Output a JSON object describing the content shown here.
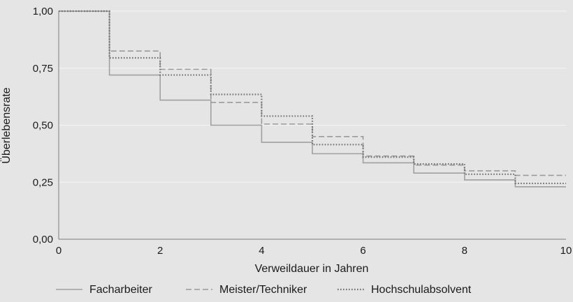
{
  "chart_data": {
    "type": "line",
    "step": true,
    "title": "",
    "xlabel": "Verweildauer in Jahren",
    "ylabel": "Überlebensrate",
    "xlim": [
      0,
      10
    ],
    "ylim": [
      0,
      1
    ],
    "xticks": [
      0,
      2,
      4,
      6,
      8,
      10
    ],
    "xtick_labels": [
      "0",
      "2",
      "4",
      "6",
      "8",
      "10"
    ],
    "yticks": [
      0,
      0.25,
      0.5,
      0.75,
      1.0
    ],
    "ytick_labels": [
      "0,00",
      "0,25",
      "0,50",
      "0,75",
      "1,00"
    ],
    "grid": "horizontal",
    "legend_position": "bottom",
    "x": [
      0,
      1,
      2,
      3,
      4,
      5,
      6,
      7,
      8,
      9,
      10
    ],
    "series": [
      {
        "name": "Facharbeiter",
        "style": "solid",
        "color": "#a0a0a0",
        "values": [
          1.0,
          0.72,
          0.61,
          0.5,
          0.425,
          0.375,
          0.335,
          0.29,
          0.26,
          0.23,
          0.23
        ]
      },
      {
        "name": "Meister/Techniker",
        "style": "dashed",
        "color": "#9a9a9a",
        "values": [
          1.0,
          0.825,
          0.745,
          0.6,
          0.505,
          0.45,
          0.365,
          0.325,
          0.3,
          0.28,
          0.28
        ]
      },
      {
        "name": "Hochschulabsolvent",
        "style": "dotted",
        "color": "#707070",
        "values": [
          1.0,
          0.795,
          0.72,
          0.635,
          0.54,
          0.415,
          0.36,
          0.33,
          0.285,
          0.245,
          0.245
        ]
      }
    ]
  }
}
